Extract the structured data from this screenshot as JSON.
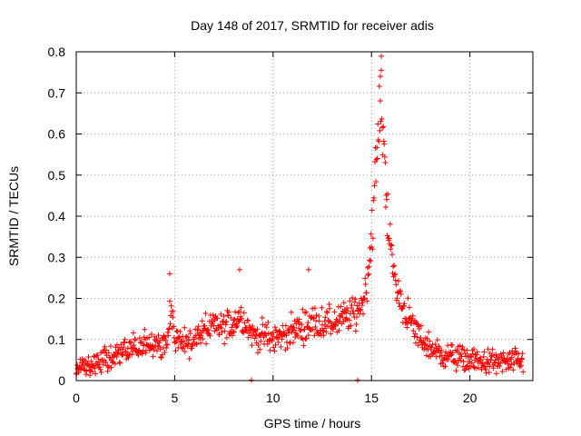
{
  "chart_data": {
    "type": "scatter",
    "title": "Day 148 of 2017, SRMTID for receiver adis",
    "xlabel": "GPS time / hours",
    "ylabel": "SRMTID / TECUs",
    "xlim": [
      0,
      23.2
    ],
    "ylim": [
      0,
      0.8
    ],
    "x_ticks": [
      0,
      5,
      10,
      15,
      20
    ],
    "x_tick_labels": [
      "0",
      "5",
      "10",
      "15",
      "20"
    ],
    "y_ticks": [
      0,
      0.1,
      0.2,
      0.3,
      0.4,
      0.5,
      0.6,
      0.7,
      0.8
    ],
    "y_tick_labels": [
      "0",
      "0.1",
      "0.2",
      "0.3",
      "0.4",
      "0.5",
      "0.6",
      "0.7",
      "0.8"
    ],
    "grid": true,
    "marker": "+",
    "series": [
      {
        "name": "SRMTID",
        "color": "#ff0000",
        "x_range": [
          0,
          22.7
        ],
        "sample_interval_hours": 0.025,
        "trend": {
          "x": [
            0,
            0.5,
            1,
            1.5,
            2,
            2.5,
            3,
            3.5,
            4,
            4.5,
            4.7,
            4.8,
            4.9,
            5.0,
            5.5,
            6,
            6.5,
            7,
            7.5,
            8,
            8.3,
            8.6,
            9,
            9.5,
            10,
            10.5,
            11,
            11.5,
            12,
            12.5,
            13,
            13.5,
            14,
            14.3,
            14.6,
            14.8,
            15.0,
            15.2,
            15.4,
            15.5,
            15.6,
            15.8,
            16.0,
            16.3,
            16.6,
            17,
            17.5,
            18,
            18.5,
            19,
            19.5,
            20,
            20.5,
            21,
            21.5,
            22,
            22.7
          ],
          "y": [
            0.035,
            0.035,
            0.04,
            0.05,
            0.06,
            0.07,
            0.08,
            0.085,
            0.09,
            0.09,
            0.12,
            0.2,
            0.15,
            0.1,
            0.09,
            0.1,
            0.12,
            0.13,
            0.13,
            0.14,
            0.16,
            0.14,
            0.11,
            0.11,
            0.1,
            0.11,
            0.12,
            0.13,
            0.14,
            0.14,
            0.14,
            0.15,
            0.16,
            0.17,
            0.2,
            0.25,
            0.35,
            0.5,
            0.62,
            0.7,
            0.6,
            0.42,
            0.3,
            0.22,
            0.18,
            0.14,
            0.1,
            0.08,
            0.065,
            0.06,
            0.055,
            0.05,
            0.045,
            0.045,
            0.045,
            0.045,
            0.045
          ]
        },
        "noise_amplitude": 0.03,
        "outliers": [
          {
            "x": 8.9,
            "y": 0.0
          },
          {
            "x": 14.3,
            "y": 0.0
          },
          {
            "x": 15.5,
            "y": 0.755
          },
          {
            "x": 15.45,
            "y": 0.74
          },
          {
            "x": 4.75,
            "y": 0.26
          },
          {
            "x": 8.3,
            "y": 0.27
          },
          {
            "x": 11.8,
            "y": 0.27
          }
        ]
      }
    ]
  }
}
